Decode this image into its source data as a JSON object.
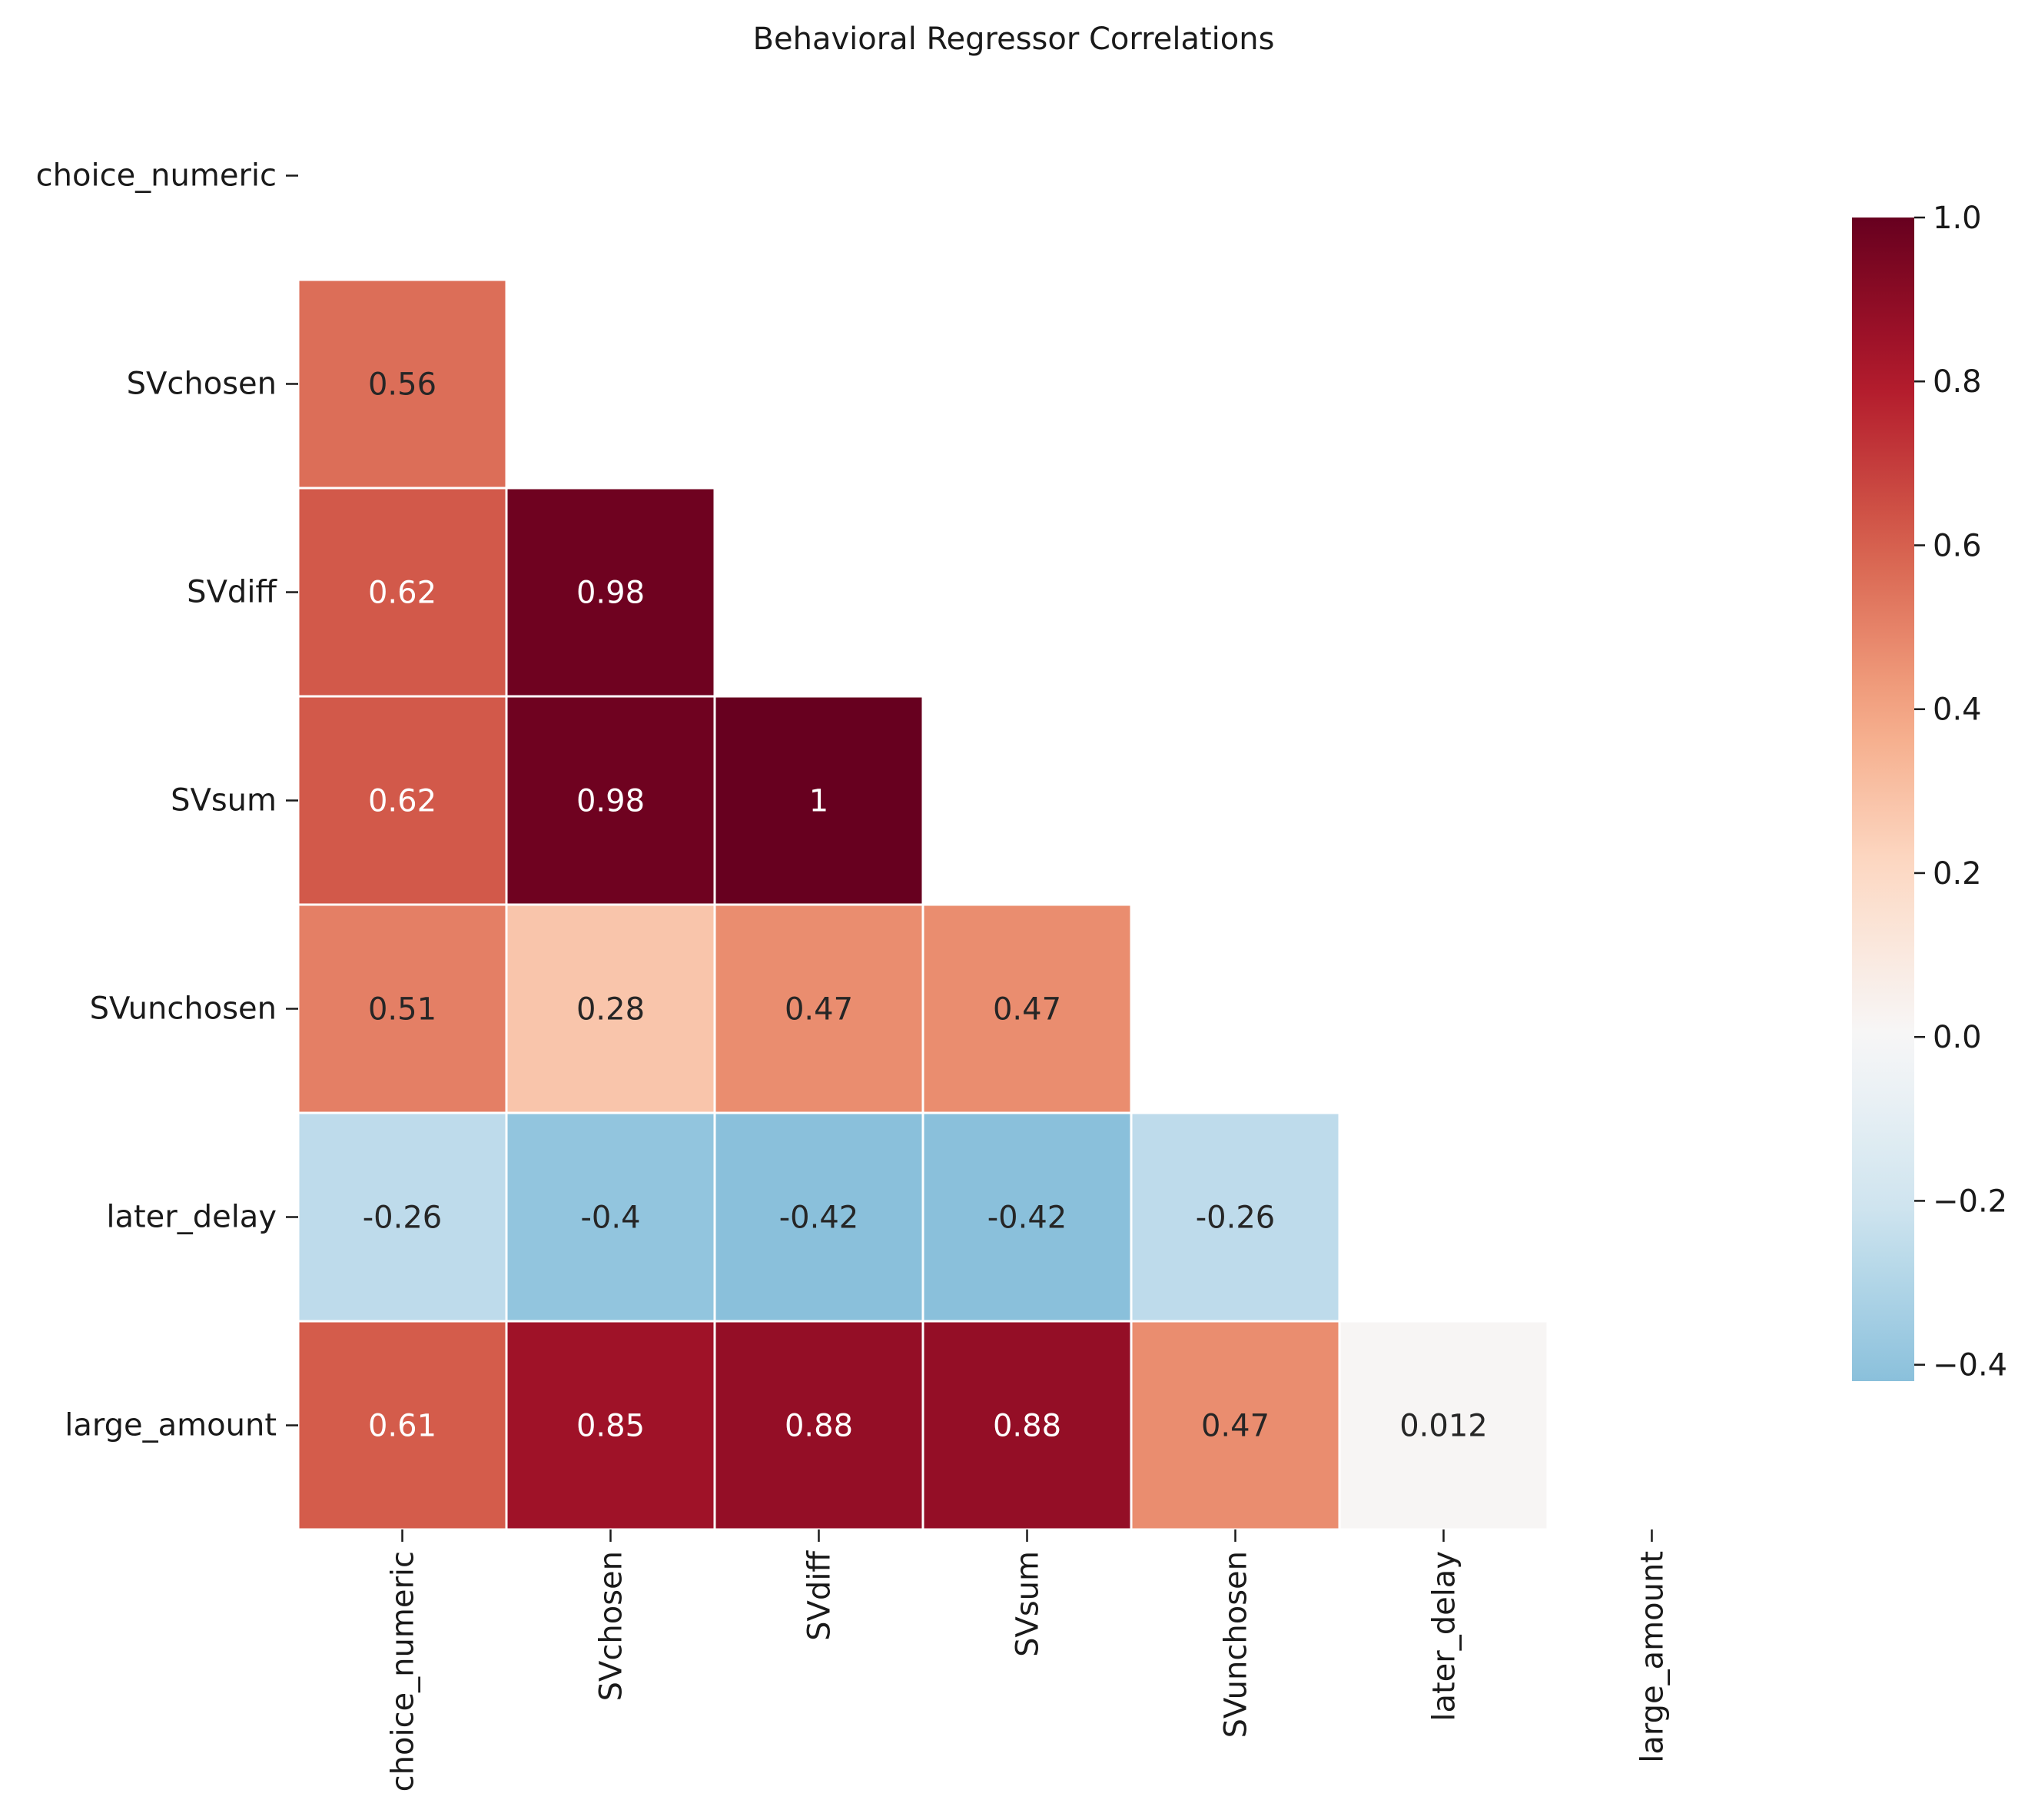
{
  "chart_data": {
    "type": "heatmap",
    "title": "Behavioral Regressor Correlations",
    "xlabel": "",
    "ylabel": "",
    "variables": [
      "choice_numeric",
      "SVchosen",
      "SVdiff",
      "SVsum",
      "SVunchosen",
      "later_delay",
      "large_amount"
    ],
    "mask": "upper-triangle-including-diagonal",
    "cells": [
      {
        "row": "SVchosen",
        "col": "choice_numeric",
        "value": 0.56,
        "label": "0.56"
      },
      {
        "row": "SVdiff",
        "col": "choice_numeric",
        "value": 0.62,
        "label": "0.62"
      },
      {
        "row": "SVdiff",
        "col": "SVchosen",
        "value": 0.98,
        "label": "0.98"
      },
      {
        "row": "SVsum",
        "col": "choice_numeric",
        "value": 0.62,
        "label": "0.62"
      },
      {
        "row": "SVsum",
        "col": "SVchosen",
        "value": 0.98,
        "label": "0.98"
      },
      {
        "row": "SVsum",
        "col": "SVdiff",
        "value": 1.0,
        "label": "1"
      },
      {
        "row": "SVunchosen",
        "col": "choice_numeric",
        "value": 0.51,
        "label": "0.51"
      },
      {
        "row": "SVunchosen",
        "col": "SVchosen",
        "value": 0.28,
        "label": "0.28"
      },
      {
        "row": "SVunchosen",
        "col": "SVdiff",
        "value": 0.47,
        "label": "0.47"
      },
      {
        "row": "SVunchosen",
        "col": "SVsum",
        "value": 0.47,
        "label": "0.47"
      },
      {
        "row": "later_delay",
        "col": "choice_numeric",
        "value": -0.26,
        "label": "-0.26"
      },
      {
        "row": "later_delay",
        "col": "SVchosen",
        "value": -0.4,
        "label": "-0.4"
      },
      {
        "row": "later_delay",
        "col": "SVdiff",
        "value": -0.42,
        "label": "-0.42"
      },
      {
        "row": "later_delay",
        "col": "SVsum",
        "value": -0.42,
        "label": "-0.42"
      },
      {
        "row": "later_delay",
        "col": "SVunchosen",
        "value": -0.26,
        "label": "-0.26"
      },
      {
        "row": "large_amount",
        "col": "choice_numeric",
        "value": 0.61,
        "label": "0.61"
      },
      {
        "row": "large_amount",
        "col": "SVchosen",
        "value": 0.85,
        "label": "0.85"
      },
      {
        "row": "large_amount",
        "col": "SVdiff",
        "value": 0.88,
        "label": "0.88"
      },
      {
        "row": "large_amount",
        "col": "SVsum",
        "value": 0.88,
        "label": "0.88"
      },
      {
        "row": "large_amount",
        "col": "SVunchosen",
        "value": 0.47,
        "label": "0.47"
      },
      {
        "row": "large_amount",
        "col": "later_delay",
        "value": 0.012,
        "label": "0.012"
      }
    ],
    "colormap": "RdBu_r",
    "colorbar": {
      "range": [
        -0.42,
        1.0
      ],
      "ticks": [
        1.0,
        0.8,
        0.6,
        0.4,
        0.2,
        0.0,
        -0.2,
        -0.4
      ],
      "tick_labels": [
        "1.0",
        "0.8",
        "0.6",
        "0.4",
        "0.2",
        "0.0",
        "−0.2",
        "−0.4"
      ]
    },
    "grid": false,
    "legend": "colorbar-right"
  }
}
